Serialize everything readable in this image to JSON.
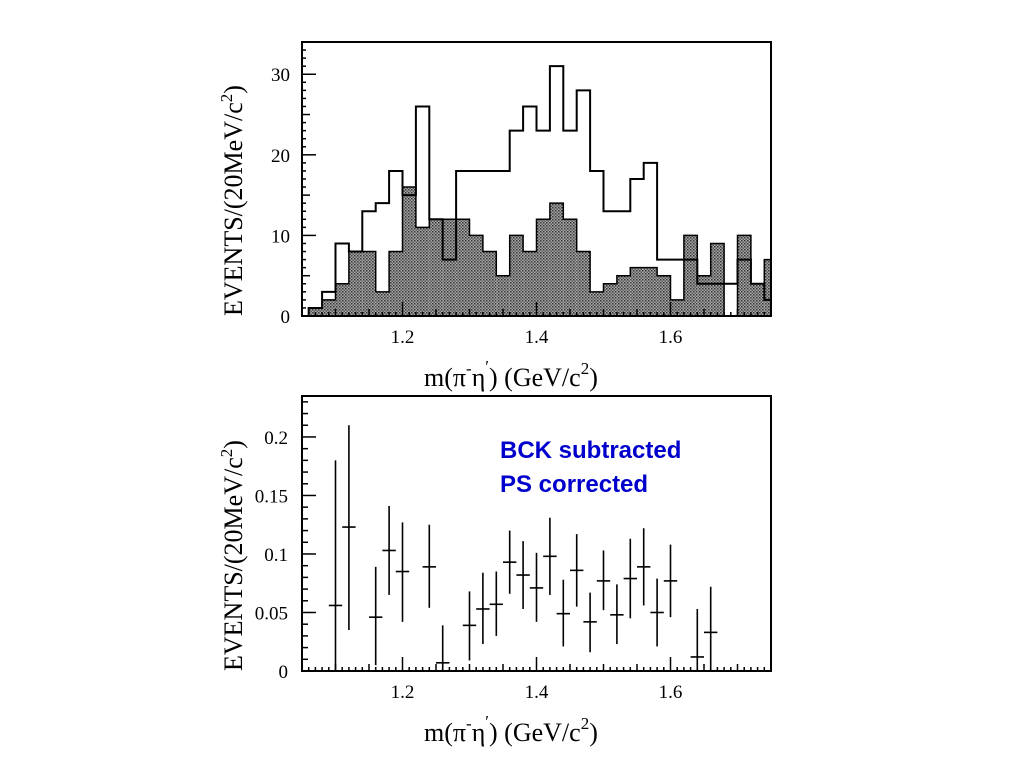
{
  "chart_data": [
    {
      "type": "bar",
      "subtype": "histogram",
      "xlim": [
        1.05,
        1.75
      ],
      "ylim": [
        0,
        34
      ],
      "bin_width": 0.02,
      "bin_starts": [
        1.06,
        1.08,
        1.1,
        1.12,
        1.14,
        1.16,
        1.18,
        1.2,
        1.22,
        1.24,
        1.26,
        1.28,
        1.3,
        1.32,
        1.34,
        1.36,
        1.38,
        1.4,
        1.42,
        1.44,
        1.46,
        1.48,
        1.5,
        1.52,
        1.54,
        1.56,
        1.58,
        1.6,
        1.62,
        1.64,
        1.66,
        1.68,
        1.7,
        1.72,
        1.74
      ],
      "xticks": [
        1.2,
        1.4,
        1.6
      ],
      "yticks": [
        0,
        10,
        20,
        30
      ],
      "xlabel": "m(π⁻η′)   (GeV/c²)",
      "xlabel_parts": {
        "pre": "m(π",
        "sup1": "-",
        "mid": "η",
        "sup2": "′",
        "post": ")   (GeV/c",
        "sup3": "2",
        "end": ")"
      },
      "ylabel": "EVENTS/(20MeV/c²)",
      "ylabel_parts": {
        "main": "EVENTS/(20MeV/c",
        "sup": "2",
        "end": ")"
      },
      "series": [
        {
          "style": "open",
          "values": [
            1,
            3,
            9,
            8,
            13,
            14,
            18,
            15,
            26,
            12,
            7,
            18,
            18,
            18,
            18,
            23,
            26,
            23,
            31,
            23,
            28,
            18,
            13,
            13,
            17,
            19,
            7,
            7,
            7,
            4,
            4,
            4,
            7,
            4,
            2
          ]
        },
        {
          "style": "hatched",
          "values": [
            1,
            2,
            4,
            8,
            8,
            3,
            8,
            16,
            11,
            12,
            12,
            12,
            10,
            8,
            5,
            10,
            8,
            12,
            14,
            12,
            8,
            3,
            4,
            5,
            6,
            6,
            5,
            2,
            10,
            5,
            9,
            0,
            10,
            4,
            7
          ]
        }
      ]
    },
    {
      "type": "scatter",
      "subtype": "errorbar",
      "xlim": [
        1.05,
        1.75
      ],
      "ylim": [
        0,
        0.235
      ],
      "xticks": [
        1.2,
        1.4,
        1.6
      ],
      "yticks": [
        0,
        0.05,
        0.1,
        0.15,
        0.2
      ],
      "ytick_labels": [
        "0",
        "0.05",
        "0.1",
        "0.15",
        "0.2"
      ],
      "xlabel": "m(π⁻η′)   (GeV/c²)",
      "xlabel_parts": {
        "pre": "m(π",
        "sup1": "-",
        "mid": "η",
        "sup2": "′",
        "post": ")   (GeV/c",
        "sup3": "2",
        "end": ")"
      },
      "ylabel": "EVENTS/(20MeV/c²)",
      "ylabel_parts": {
        "main": "EVENTS/(20MeV/c",
        "sup": "2",
        "end": ")"
      },
      "annotations": [
        "BCK subtracted",
        "PS corrected"
      ],
      "points": [
        {
          "x": 1.1,
          "y": 0.056,
          "lo": 0.0,
          "hi": 0.18
        },
        {
          "x": 1.12,
          "y": 0.123,
          "lo": 0.035,
          "hi": 0.21
        },
        {
          "x": 1.16,
          "y": 0.046,
          "lo": 0.005,
          "hi": 0.089
        },
        {
          "x": 1.18,
          "y": 0.103,
          "lo": 0.065,
          "hi": 0.141
        },
        {
          "x": 1.2,
          "y": 0.085,
          "lo": 0.042,
          "hi": 0.127
        },
        {
          "x": 1.24,
          "y": 0.089,
          "lo": 0.054,
          "hi": 0.125
        },
        {
          "x": 1.26,
          "y": 0.007,
          "lo": 0.0,
          "hi": 0.039
        },
        {
          "x": 1.3,
          "y": 0.039,
          "lo": 0.009,
          "hi": 0.068
        },
        {
          "x": 1.32,
          "y": 0.053,
          "lo": 0.023,
          "hi": 0.084
        },
        {
          "x": 1.34,
          "y": 0.057,
          "lo": 0.03,
          "hi": 0.085
        },
        {
          "x": 1.36,
          "y": 0.093,
          "lo": 0.066,
          "hi": 0.12
        },
        {
          "x": 1.38,
          "y": 0.082,
          "lo": 0.053,
          "hi": 0.111
        },
        {
          "x": 1.4,
          "y": 0.071,
          "lo": 0.042,
          "hi": 0.101
        },
        {
          "x": 1.42,
          "y": 0.098,
          "lo": 0.065,
          "hi": 0.131
        },
        {
          "x": 1.44,
          "y": 0.049,
          "lo": 0.021,
          "hi": 0.078
        },
        {
          "x": 1.46,
          "y": 0.086,
          "lo": 0.055,
          "hi": 0.117
        },
        {
          "x": 1.48,
          "y": 0.042,
          "lo": 0.016,
          "hi": 0.067
        },
        {
          "x": 1.5,
          "y": 0.077,
          "lo": 0.052,
          "hi": 0.103
        },
        {
          "x": 1.52,
          "y": 0.048,
          "lo": 0.023,
          "hi": 0.074
        },
        {
          "x": 1.54,
          "y": 0.079,
          "lo": 0.045,
          "hi": 0.113
        },
        {
          "x": 1.56,
          "y": 0.089,
          "lo": 0.056,
          "hi": 0.122
        },
        {
          "x": 1.58,
          "y": 0.05,
          "lo": 0.021,
          "hi": 0.079
        },
        {
          "x": 1.6,
          "y": 0.077,
          "lo": 0.046,
          "hi": 0.108
        },
        {
          "x": 1.64,
          "y": 0.012,
          "lo": 0.0,
          "hi": 0.053
        },
        {
          "x": 1.66,
          "y": 0.033,
          "lo": 0.0,
          "hi": 0.072
        }
      ]
    }
  ]
}
